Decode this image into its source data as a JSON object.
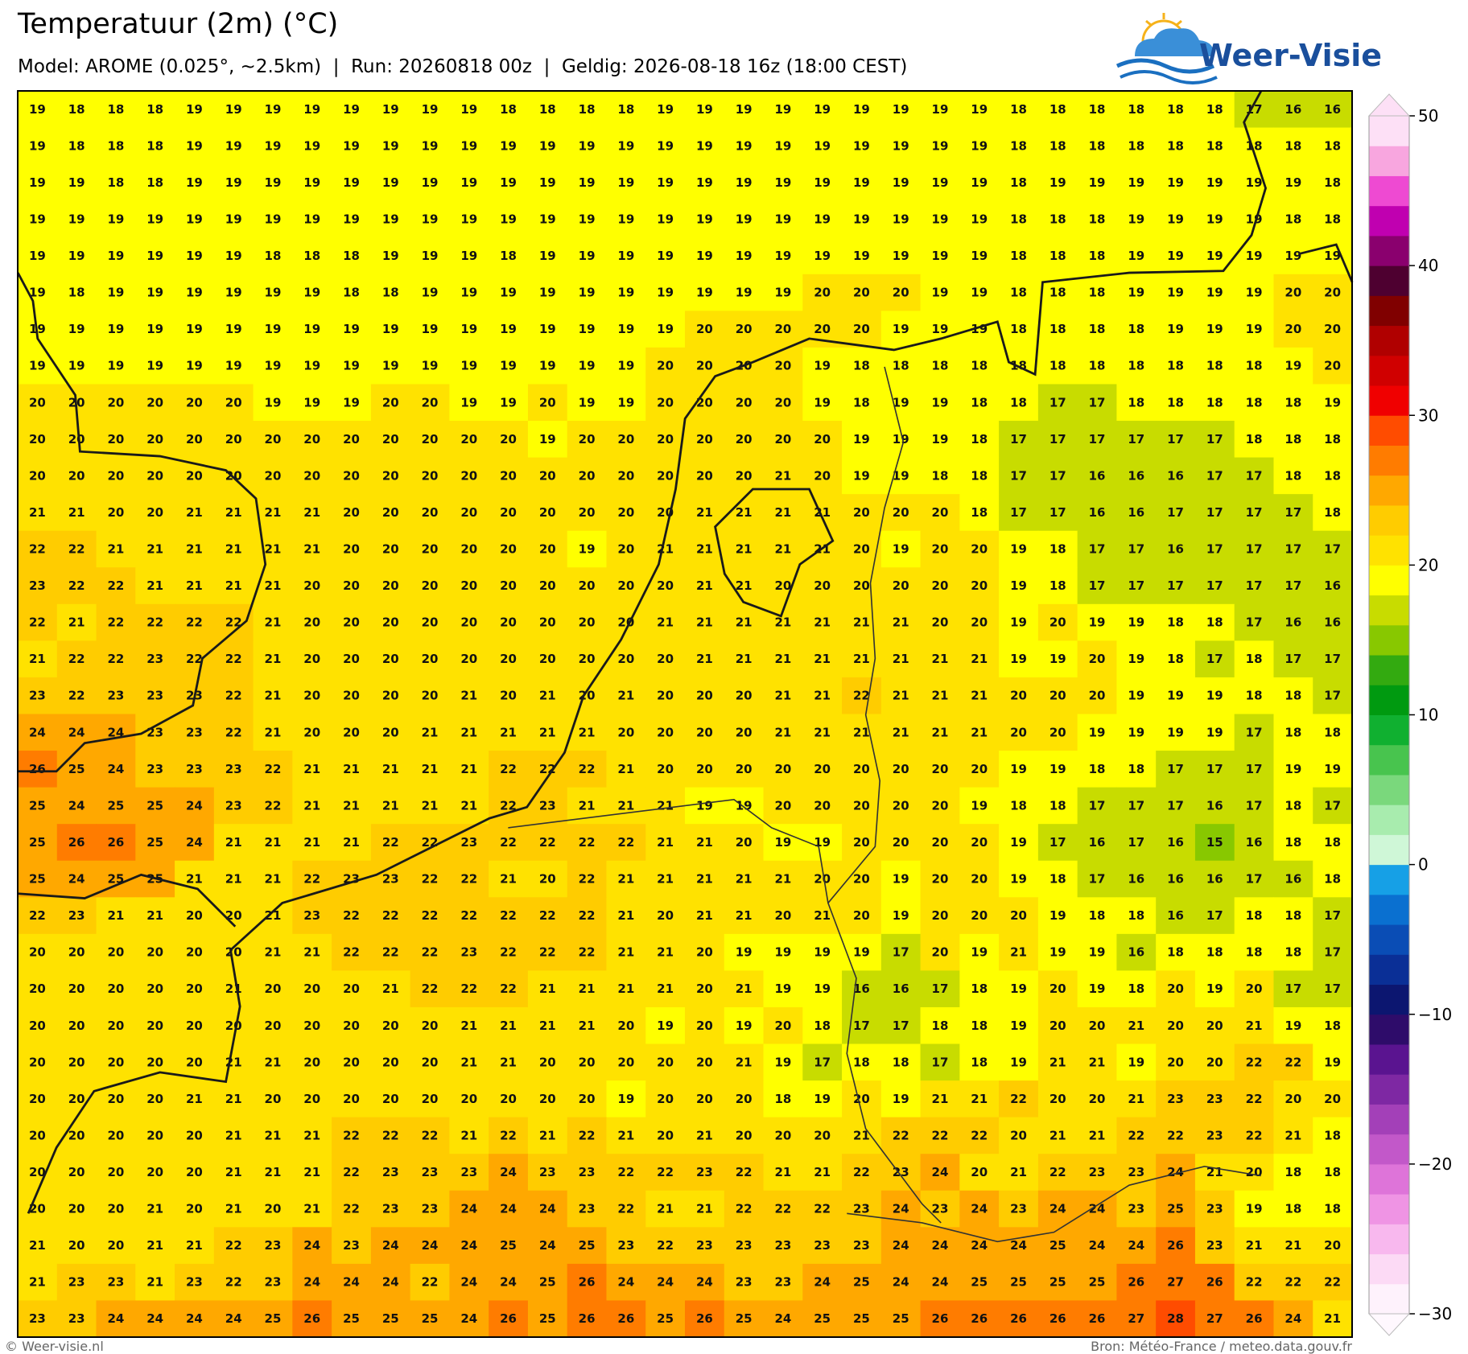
{
  "header": {
    "title": "Temperatuur (2m) (°C)",
    "subtitle": "Model: AROME (0.025°, ~2.5km)  |  Run: 20260818 00z  |  Geldig: 2026-08-18 16z (18:00 CEST)"
  },
  "logo": {
    "text": "Weer-Visie"
  },
  "map": {
    "type": "heatmap",
    "values": [
      [
        19,
        18,
        18,
        18,
        19,
        19,
        19,
        19,
        19,
        19,
        19,
        19,
        18,
        18,
        18,
        18,
        19,
        19,
        19,
        19,
        19,
        19,
        19,
        19,
        19,
        18,
        18,
        18,
        18,
        18,
        18,
        17,
        16,
        16
      ],
      [
        19,
        18,
        18,
        18,
        19,
        19,
        19,
        19,
        19,
        19,
        19,
        19,
        19,
        19,
        19,
        19,
        19,
        19,
        19,
        19,
        19,
        19,
        19,
        19,
        19,
        18,
        18,
        18,
        18,
        18,
        18,
        18,
        18,
        18
      ],
      [
        19,
        19,
        18,
        18,
        19,
        19,
        19,
        19,
        19,
        19,
        19,
        19,
        19,
        19,
        19,
        19,
        19,
        19,
        19,
        19,
        19,
        19,
        19,
        19,
        19,
        18,
        19,
        19,
        19,
        19,
        19,
        19,
        19,
        18
      ],
      [
        19,
        19,
        19,
        19,
        19,
        19,
        19,
        19,
        19,
        19,
        19,
        19,
        19,
        19,
        19,
        19,
        19,
        19,
        19,
        19,
        19,
        19,
        19,
        19,
        19,
        18,
        18,
        18,
        19,
        19,
        19,
        19,
        18,
        18
      ],
      [
        19,
        19,
        19,
        19,
        19,
        19,
        18,
        18,
        18,
        19,
        19,
        19,
        18,
        19,
        19,
        19,
        19,
        19,
        19,
        19,
        19,
        19,
        19,
        19,
        19,
        18,
        18,
        18,
        19,
        19,
        19,
        19,
        19,
        19
      ],
      [
        19,
        18,
        19,
        19,
        19,
        19,
        19,
        19,
        18,
        18,
        19,
        19,
        19,
        19,
        19,
        19,
        19,
        19,
        19,
        19,
        20,
        20,
        20,
        19,
        19,
        18,
        18,
        18,
        19,
        19,
        19,
        19,
        20,
        20
      ],
      [
        19,
        19,
        19,
        19,
        19,
        19,
        19,
        19,
        19,
        19,
        19,
        19,
        19,
        19,
        19,
        19,
        19,
        20,
        20,
        20,
        20,
        20,
        19,
        19,
        19,
        18,
        18,
        18,
        18,
        19,
        19,
        19,
        20,
        20
      ],
      [
        19,
        19,
        19,
        19,
        19,
        19,
        19,
        19,
        19,
        19,
        19,
        19,
        19,
        19,
        19,
        19,
        20,
        20,
        20,
        20,
        19,
        18,
        18,
        18,
        18,
        18,
        18,
        18,
        18,
        18,
        18,
        18,
        19,
        20
      ],
      [
        20,
        20,
        20,
        20,
        20,
        20,
        19,
        19,
        19,
        20,
        20,
        19,
        19,
        20,
        19,
        19,
        20,
        20,
        20,
        20,
        19,
        18,
        19,
        19,
        18,
        18,
        17,
        17,
        18,
        18,
        18,
        18,
        18,
        19
      ],
      [
        20,
        20,
        20,
        20,
        20,
        20,
        20,
        20,
        20,
        20,
        20,
        20,
        20,
        19,
        20,
        20,
        20,
        20,
        20,
        20,
        20,
        19,
        19,
        19,
        18,
        17,
        17,
        17,
        17,
        17,
        17,
        18,
        18,
        18
      ],
      [
        20,
        20,
        20,
        20,
        20,
        20,
        20,
        20,
        20,
        20,
        20,
        20,
        20,
        20,
        20,
        20,
        20,
        20,
        20,
        21,
        20,
        19,
        19,
        18,
        18,
        17,
        17,
        16,
        16,
        16,
        17,
        17,
        18,
        18
      ],
      [
        21,
        21,
        20,
        20,
        21,
        21,
        21,
        21,
        20,
        20,
        20,
        20,
        20,
        20,
        20,
        20,
        20,
        21,
        21,
        21,
        21,
        20,
        20,
        20,
        18,
        17,
        17,
        16,
        16,
        17,
        17,
        17,
        17,
        18
      ],
      [
        22,
        22,
        21,
        21,
        21,
        21,
        21,
        21,
        20,
        20,
        20,
        20,
        20,
        20,
        19,
        20,
        21,
        21,
        21,
        21,
        21,
        20,
        19,
        20,
        20,
        19,
        18,
        17,
        17,
        16,
        17,
        17,
        17,
        17
      ],
      [
        23,
        22,
        22,
        21,
        21,
        21,
        21,
        20,
        20,
        20,
        20,
        20,
        20,
        20,
        20,
        20,
        20,
        21,
        21,
        20,
        20,
        20,
        20,
        20,
        20,
        19,
        18,
        17,
        17,
        17,
        17,
        17,
        17,
        16
      ],
      [
        22,
        21,
        22,
        22,
        22,
        22,
        21,
        20,
        20,
        20,
        20,
        20,
        20,
        20,
        20,
        20,
        21,
        21,
        21,
        21,
        21,
        21,
        21,
        20,
        20,
        19,
        20,
        19,
        19,
        18,
        18,
        17,
        16,
        16
      ],
      [
        21,
        22,
        22,
        23,
        22,
        22,
        21,
        20,
        20,
        20,
        20,
        20,
        20,
        20,
        20,
        20,
        20,
        21,
        21,
        21,
        21,
        21,
        21,
        21,
        21,
        19,
        19,
        20,
        19,
        18,
        17,
        18,
        17,
        17
      ],
      [
        23,
        22,
        23,
        23,
        23,
        22,
        21,
        20,
        20,
        20,
        20,
        21,
        20,
        21,
        20,
        21,
        20,
        20,
        20,
        21,
        21,
        22,
        21,
        21,
        21,
        20,
        20,
        20,
        19,
        19,
        19,
        18,
        18,
        17
      ],
      [
        24,
        24,
        24,
        23,
        23,
        22,
        21,
        20,
        20,
        20,
        21,
        21,
        21,
        21,
        21,
        20,
        20,
        20,
        20,
        21,
        21,
        21,
        21,
        21,
        21,
        20,
        20,
        19,
        19,
        19,
        19,
        17,
        18,
        18
      ],
      [
        26,
        25,
        24,
        23,
        23,
        23,
        22,
        21,
        21,
        21,
        21,
        21,
        22,
        22,
        22,
        21,
        20,
        20,
        20,
        20,
        20,
        20,
        20,
        20,
        20,
        19,
        19,
        18,
        18,
        17,
        17,
        17,
        19,
        19
      ],
      [
        25,
        24,
        25,
        25,
        24,
        23,
        22,
        21,
        21,
        21,
        21,
        21,
        22,
        23,
        21,
        21,
        21,
        19,
        19,
        20,
        20,
        20,
        20,
        20,
        19,
        18,
        18,
        17,
        17,
        17,
        16,
        17,
        18,
        17
      ],
      [
        25,
        26,
        26,
        25,
        24,
        21,
        21,
        21,
        21,
        22,
        22,
        23,
        22,
        22,
        22,
        22,
        21,
        21,
        20,
        19,
        19,
        20,
        20,
        20,
        20,
        19,
        17,
        16,
        17,
        16,
        15,
        16,
        18,
        18
      ],
      [
        25,
        24,
        25,
        25,
        21,
        21,
        21,
        22,
        23,
        23,
        22,
        22,
        21,
        20,
        22,
        21,
        21,
        21,
        21,
        21,
        20,
        20,
        19,
        20,
        20,
        19,
        18,
        17,
        16,
        16,
        16,
        17,
        16,
        18
      ],
      [
        22,
        23,
        21,
        21,
        20,
        20,
        21,
        23,
        22,
        22,
        22,
        22,
        22,
        22,
        22,
        21,
        20,
        21,
        21,
        20,
        21,
        20,
        19,
        20,
        20,
        20,
        19,
        18,
        18,
        16,
        17,
        18,
        18,
        17
      ],
      [
        20,
        20,
        20,
        20,
        20,
        20,
        21,
        21,
        22,
        22,
        22,
        23,
        22,
        22,
        22,
        21,
        21,
        20,
        19,
        19,
        19,
        19,
        17,
        20,
        19,
        21,
        19,
        19,
        16,
        18,
        18,
        18,
        18,
        17
      ],
      [
        20,
        20,
        20,
        20,
        20,
        21,
        20,
        20,
        20,
        21,
        22,
        22,
        22,
        21,
        21,
        21,
        21,
        20,
        21,
        19,
        19,
        16,
        16,
        17,
        18,
        19,
        20,
        19,
        18,
        20,
        19,
        20,
        17,
        17
      ],
      [
        20,
        20,
        20,
        20,
        20,
        20,
        20,
        20,
        20,
        20,
        20,
        21,
        21,
        21,
        21,
        20,
        19,
        20,
        19,
        20,
        18,
        17,
        17,
        18,
        18,
        19,
        20,
        20,
        21,
        20,
        20,
        21,
        19,
        18
      ],
      [
        20,
        20,
        20,
        20,
        20,
        21,
        21,
        20,
        20,
        20,
        20,
        21,
        21,
        20,
        20,
        20,
        20,
        20,
        21,
        19,
        17,
        18,
        18,
        17,
        18,
        19,
        21,
        21,
        19,
        20,
        20,
        22,
        22,
        19
      ],
      [
        20,
        20,
        20,
        20,
        21,
        21,
        20,
        20,
        20,
        20,
        20,
        20,
        20,
        20,
        20,
        19,
        20,
        20,
        20,
        18,
        19,
        20,
        19,
        21,
        21,
        22,
        20,
        20,
        21,
        23,
        23,
        22,
        20,
        20
      ],
      [
        20,
        20,
        20,
        20,
        20,
        21,
        21,
        21,
        22,
        22,
        22,
        21,
        22,
        21,
        22,
        21,
        20,
        21,
        20,
        20,
        20,
        21,
        22,
        22,
        22,
        20,
        21,
        21,
        22,
        22,
        23,
        22,
        21,
        18
      ],
      [
        20,
        20,
        20,
        20,
        20,
        21,
        21,
        21,
        22,
        23,
        23,
        23,
        24,
        23,
        23,
        22,
        22,
        23,
        22,
        21,
        21,
        22,
        23,
        24,
        20,
        21,
        22,
        23,
        23,
        24,
        21,
        20,
        18,
        18
      ],
      [
        20,
        20,
        20,
        21,
        20,
        21,
        20,
        21,
        22,
        23,
        23,
        24,
        24,
        24,
        23,
        22,
        21,
        21,
        22,
        22,
        22,
        23,
        24,
        23,
        24,
        23,
        24,
        24,
        23,
        25,
        23,
        19,
        18,
        18
      ],
      [
        21,
        20,
        20,
        21,
        21,
        22,
        23,
        24,
        23,
        24,
        24,
        24,
        25,
        24,
        25,
        23,
        22,
        23,
        23,
        23,
        23,
        23,
        24,
        24,
        24,
        24,
        25,
        24,
        24,
        26,
        23,
        21,
        21,
        20
      ],
      [
        21,
        23,
        23,
        21,
        23,
        22,
        23,
        24,
        24,
        24,
        22,
        24,
        24,
        25,
        26,
        24,
        24,
        24,
        23,
        23,
        24,
        25,
        24,
        24,
        25,
        25,
        25,
        25,
        26,
        27,
        26,
        22,
        22,
        22
      ],
      [
        23,
        23,
        24,
        24,
        24,
        24,
        25,
        26,
        25,
        25,
        25,
        24,
        26,
        25,
        26,
        26,
        25,
        26,
        25,
        24,
        25,
        25,
        25,
        26,
        26,
        26,
        26,
        26,
        27,
        28,
        27,
        26,
        24,
        21
      ]
    ]
  },
  "colorbar": {
    "vlim": [
      -30,
      50
    ],
    "ticks": [
      {
        "value": -30,
        "label": "−30"
      },
      {
        "value": -20,
        "label": "−20"
      },
      {
        "value": -10,
        "label": "−10"
      },
      0,
      10,
      20,
      30,
      40,
      50
    ],
    "colors": [
      "#fef2fc",
      "#fcdaf5",
      "#f8b8ee",
      "#ef94e4",
      "#de74d9",
      "#c258c9",
      "#a340b8",
      "#7e28a3",
      "#5a1490",
      "#2e0c6a",
      "#0c1670",
      "#0a2f96",
      "#0a4db5",
      "#0a70d0",
      "#16a0e6",
      "#cff7d7",
      "#a8ecae",
      "#7ad87c",
      "#48c44e",
      "#10b030",
      "#009a10",
      "#33aa10",
      "#88c800",
      "#c8dc00",
      "#ffff00",
      "#ffe200",
      "#ffcc00",
      "#ffa800",
      "#ff7c00",
      "#ff4c00",
      "#f00000",
      "#d00000",
      "#b00000",
      "#800000",
      "#4e0030",
      "#8a006e",
      "#c000b0",
      "#ee4ad2",
      "#f8a6df",
      "#fde0f6"
    ]
  },
  "footer": {
    "left": "© Weer-visie.nl",
    "right": "Bron: Météo-France / meteo.data.gouv.fr"
  }
}
